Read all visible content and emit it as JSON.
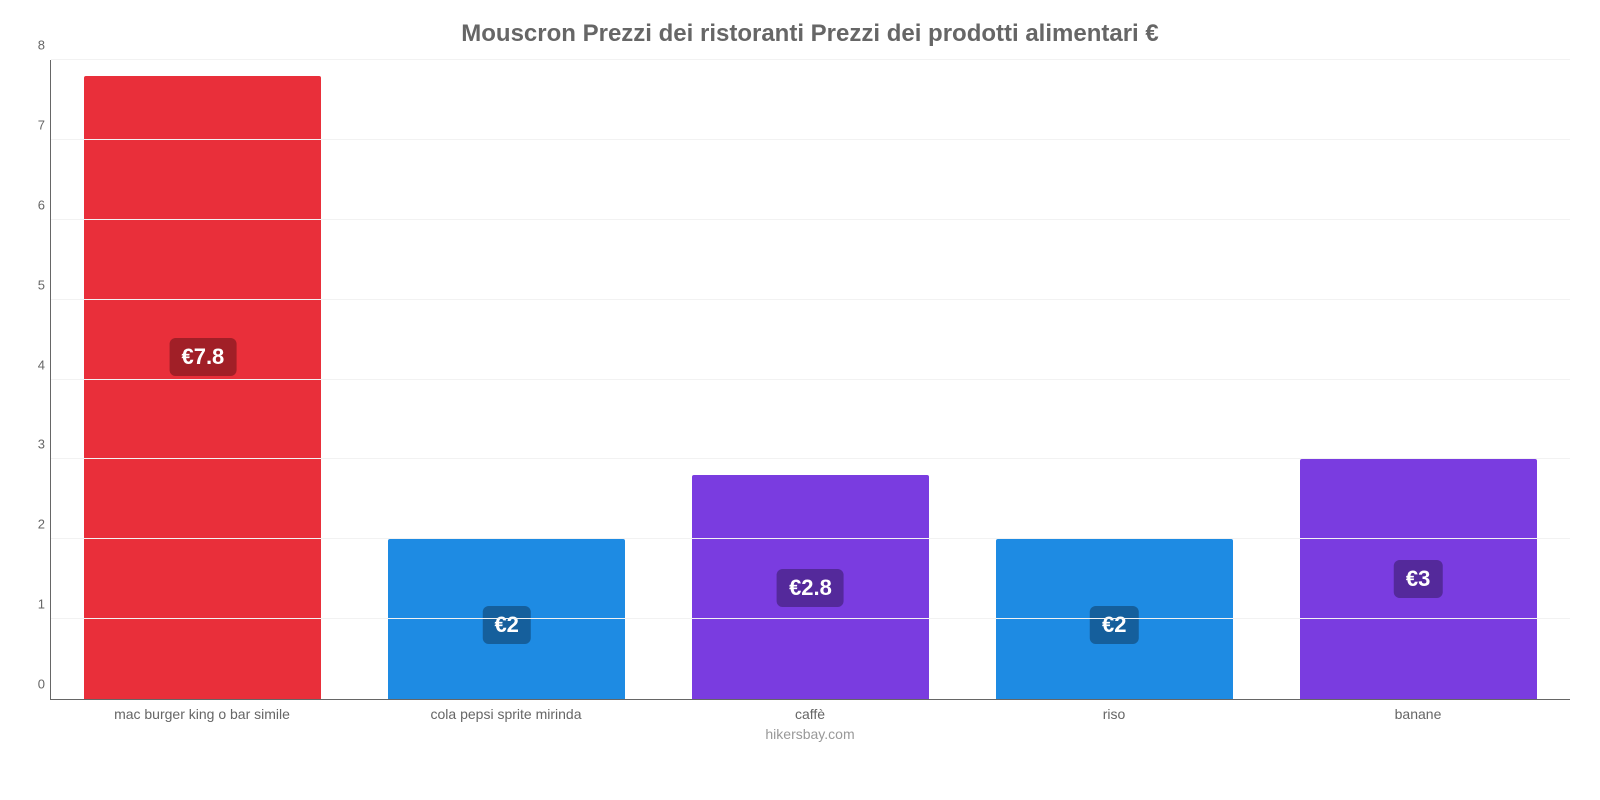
{
  "chart": {
    "type": "bar",
    "title": "Mouscron Prezzi dei ristoranti Prezzi dei prodotti alimentari €",
    "title_fontsize": 24,
    "title_color": "#666666",
    "footer": "hikersbay.com",
    "footer_color": "#999999",
    "footer_fontsize": 14,
    "background_color": "#ffffff",
    "grid_color": "#f2f2f2",
    "axis_color": "#666666",
    "ylim_min": 0,
    "ylim_max": 8,
    "ytick_step": 1,
    "yticks": [
      0,
      1,
      2,
      3,
      4,
      5,
      6,
      7,
      8
    ],
    "ytick_fontsize": 13,
    "xlabel_fontsize": 14,
    "xlabel_color": "#666666",
    "bar_width_pct": 78,
    "value_label_fontsize": 22,
    "categories": [
      "mac burger king o bar simile",
      "cola pepsi sprite mirinda",
      "caffè",
      "riso",
      "banane"
    ],
    "values": [
      7.8,
      2.0,
      2.8,
      2.0,
      3.0
    ],
    "value_labels": [
      "€7.8",
      "€2",
      "€2.8",
      "€2",
      "€3"
    ],
    "bar_colors": [
      "#e92f3a",
      "#1e8be3",
      "#7a3ce0",
      "#1e8be3",
      "#7a3ce0"
    ],
    "badge_colors": [
      "#a11f27",
      "#155f9c",
      "#54299b",
      "#155f9c",
      "#54299b"
    ]
  }
}
